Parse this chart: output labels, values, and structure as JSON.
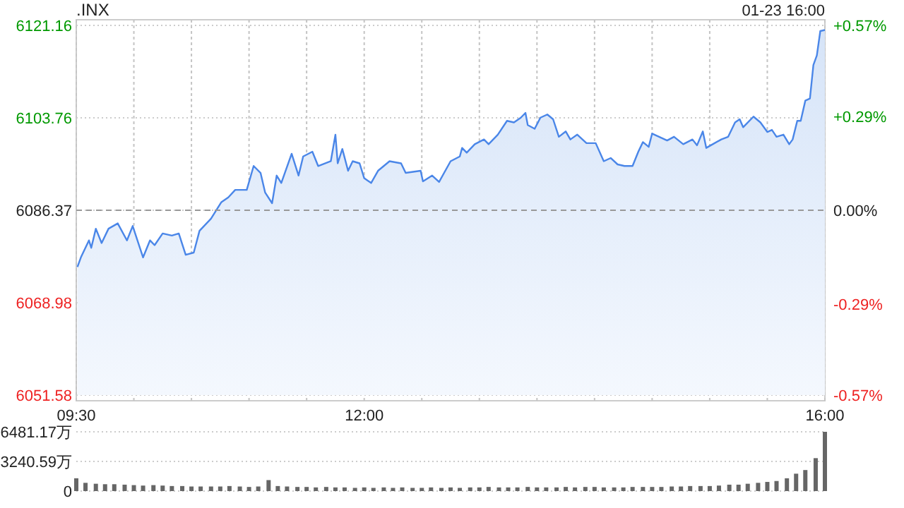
{
  "chart_data": [
    {
      "type": "area",
      "title": ".INX",
      "annotations": [
        "01-23 16:00"
      ],
      "series": [
        {
          "color": "#4a86e8",
          "x": [
            9.51,
            9.54,
            9.61,
            9.63,
            9.67,
            9.72,
            9.78,
            9.86,
            9.94,
            9.99,
            10.08,
            10.14,
            10.18,
            10.25,
            10.33,
            10.39,
            10.45,
            10.52,
            10.57,
            10.67,
            10.76,
            10.82,
            10.88,
            10.98,
            11.04,
            11.1,
            11.14,
            11.2,
            11.24,
            11.28,
            11.37,
            11.43,
            11.47,
            11.55,
            11.6,
            11.71,
            11.75,
            11.77,
            11.81,
            11.86,
            11.9,
            11.96,
            12.0,
            12.06,
            12.12,
            12.22,
            12.32,
            12.36,
            12.49,
            12.51,
            12.59,
            12.65,
            12.75,
            12.83,
            12.85,
            12.89,
            12.96,
            13.04,
            13.08,
            13.16,
            13.24,
            13.3,
            13.36,
            13.4,
            13.42,
            13.48,
            13.53,
            13.59,
            13.64,
            13.69,
            13.75,
            13.79,
            13.85,
            13.93,
            14.01,
            14.08,
            14.14,
            14.2,
            14.26,
            14.33,
            14.38,
            14.42,
            14.47,
            14.5,
            14.56,
            14.63,
            14.69,
            14.77,
            14.85,
            14.89,
            14.94,
            14.97,
            15.01,
            15.1,
            15.16,
            15.22,
            15.26,
            15.29,
            15.38,
            15.44,
            15.5,
            15.54,
            15.58,
            15.64,
            15.69,
            15.72,
            15.76,
            15.79,
            15.83,
            15.87,
            15.9,
            15.93,
            15.96,
            16.0
          ],
          "values": [
            6075.7,
            6077.5,
            6080.7,
            6079.3,
            6082.9,
            6080.2,
            6082.9,
            6083.9,
            6080.7,
            6083.4,
            6077.5,
            6080.7,
            6079.8,
            6082.0,
            6081.6,
            6082.0,
            6078.0,
            6078.4,
            6082.5,
            6084.8,
            6087.9,
            6088.8,
            6090.2,
            6090.2,
            6094.7,
            6093.4,
            6089.7,
            6087.7,
            6092.9,
            6091.5,
            6097.0,
            6092.9,
            6096.5,
            6097.4,
            6094.7,
            6095.6,
            6100.6,
            6095.2,
            6097.9,
            6093.8,
            6095.6,
            6095.2,
            6092.4,
            6091.5,
            6093.8,
            6095.6,
            6095.2,
            6093.4,
            6093.8,
            6091.8,
            6092.9,
            6091.7,
            6095.6,
            6096.5,
            6098.1,
            6097.2,
            6098.8,
            6099.7,
            6098.8,
            6100.6,
            6103.2,
            6102.9,
            6103.8,
            6104.7,
            6102.4,
            6101.7,
            6103.8,
            6104.4,
            6103.5,
            6100.2,
            6101.2,
            6099.7,
            6100.6,
            6099.0,
            6099.0,
            6095.6,
            6096.2,
            6095.0,
            6094.7,
            6094.7,
            6097.4,
            6099.2,
            6098.3,
            6100.8,
            6100.2,
            6099.5,
            6100.2,
            6098.8,
            6099.7,
            6098.6,
            6101.2,
            6098.1,
            6098.6,
            6099.7,
            6100.2,
            6102.9,
            6103.5,
            6102.0,
            6104.0,
            6102.9,
            6101.1,
            6101.5,
            6100.2,
            6100.6,
            6098.8,
            6099.7,
            6103.2,
            6103.2,
            6107.0,
            6107.4,
            6113.7,
            6115.5,
            6120.1,
            6120.3
          ]
        }
      ],
      "xlim": [
        9.5,
        16
      ],
      "xticks": [
        {
          "value": 9.5,
          "label": "09:30"
        },
        {
          "value": 10,
          "label": null
        },
        {
          "value": 10.5,
          "label": null
        },
        {
          "value": 11,
          "label": null
        },
        {
          "value": 11.5,
          "label": null
        },
        {
          "value": 12,
          "label": "12:00"
        },
        {
          "value": 12.5,
          "label": null
        },
        {
          "value": 13,
          "label": null
        },
        {
          "value": 13.5,
          "label": null
        },
        {
          "value": 14,
          "label": null
        },
        {
          "value": 14.5,
          "label": null
        },
        {
          "value": 15,
          "label": null
        },
        {
          "value": 15.5,
          "label": null
        },
        {
          "value": 16,
          "label": "16:00"
        }
      ],
      "ylim": [
        6051.58,
        6121.16
      ],
      "yticks": [
        6051.58,
        6068.98,
        6086.37,
        6103.76,
        6121.16
      ],
      "y2lim": [
        -0.57,
        0.57
      ],
      "y2ticks": [
        {
          "value": -0.57,
          "label": "-0.57%"
        },
        {
          "value": -0.29,
          "label": "-0.29%"
        },
        {
          "value": 0,
          "label": "0.00%"
        },
        {
          "value": 0.29,
          "label": "+0.29%"
        },
        {
          "value": 0.57,
          "label": "+0.57%"
        }
      ],
      "ref_lines": [
        {
          "axis": "y",
          "value": 6086.37,
          "color": "#999999",
          "line_style": "dashed"
        }
      ],
      "grid": true
    },
    {
      "type": "bar",
      "color": "#666666",
      "x": [
        9.5,
        9.58,
        9.67,
        9.75,
        9.83,
        9.92,
        10,
        10.08,
        10.17,
        10.25,
        10.33,
        10.42,
        10.5,
        10.58,
        10.67,
        10.75,
        10.83,
        10.92,
        11,
        11.08,
        11.17,
        11.25,
        11.33,
        11.42,
        11.5,
        11.58,
        11.67,
        11.75,
        11.83,
        11.92,
        12,
        12.08,
        12.17,
        12.25,
        12.33,
        12.42,
        12.5,
        12.58,
        12.67,
        12.75,
        12.83,
        12.92,
        13,
        13.08,
        13.17,
        13.25,
        13.33,
        13.42,
        13.5,
        13.58,
        13.67,
        13.75,
        13.83,
        13.92,
        14,
        14.08,
        14.17,
        14.25,
        14.33,
        14.42,
        14.5,
        14.58,
        14.67,
        14.75,
        14.83,
        14.92,
        15,
        15.08,
        15.17,
        15.25,
        15.33,
        15.42,
        15.5,
        15.58,
        15.67,
        15.75,
        15.83,
        15.92,
        16
      ],
      "values": [
        1400,
        900,
        800,
        750,
        750,
        700,
        650,
        600,
        650,
        600,
        550,
        550,
        500,
        500,
        500,
        500,
        550,
        500,
        450,
        500,
        1200,
        550,
        500,
        450,
        450,
        400,
        450,
        400,
        400,
        350,
        400,
        350,
        400,
        350,
        400,
        350,
        350,
        400,
        350,
        400,
        350,
        400,
        400,
        450,
        400,
        400,
        400,
        450,
        400,
        400,
        400,
        450,
        400,
        450,
        450,
        400,
        400,
        400,
        450,
        450,
        450,
        450,
        500,
        500,
        550,
        550,
        550,
        600,
        700,
        700,
        800,
        900,
        1000,
        1100,
        1400,
        1900,
        2300,
        3600,
        6481.17
      ],
      "xlim": [
        9.5,
        16
      ],
      "ylim": [
        0,
        6481.17
      ],
      "yticks": [
        0,
        {
          "value": 3240.59,
          "label": "3240.59万"
        },
        {
          "value": 6481.17,
          "label": "6481.17万"
        }
      ],
      "tick_labels": "y",
      "grid": "y"
    }
  ]
}
